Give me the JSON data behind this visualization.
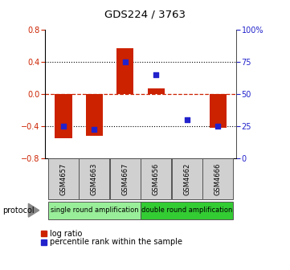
{
  "title": "GDS224 / 3763",
  "samples": [
    "GSM4657",
    "GSM4663",
    "GSM4667",
    "GSM4656",
    "GSM4662",
    "GSM4666"
  ],
  "log_ratios": [
    -0.55,
    -0.52,
    0.57,
    0.07,
    0.0,
    -0.42
  ],
  "percentile_ranks": [
    25,
    22,
    75,
    65,
    30,
    25
  ],
  "protocol_groups": [
    {
      "label": "single round amplification",
      "indices": [
        0,
        1,
        2
      ],
      "color": "#99ee99"
    },
    {
      "label": "double round amplification",
      "indices": [
        3,
        4,
        5
      ],
      "color": "#33cc33"
    }
  ],
  "bar_color": "#cc2200",
  "dot_color": "#2222cc",
  "ylim_left": [
    -0.8,
    0.8
  ],
  "ylim_right": [
    0,
    100
  ],
  "yticks_left": [
    -0.8,
    -0.4,
    0.0,
    0.4,
    0.8
  ],
  "yticks_right": [
    0,
    25,
    50,
    75,
    100
  ],
  "ytick_labels_right": [
    "0",
    "25",
    "50",
    "75",
    "100%"
  ],
  "dotted_lines": [
    -0.4,
    0.4
  ],
  "legend_log_ratio": "log ratio",
  "legend_percentile": "percentile rank within the sample",
  "protocol_label": "protocol"
}
